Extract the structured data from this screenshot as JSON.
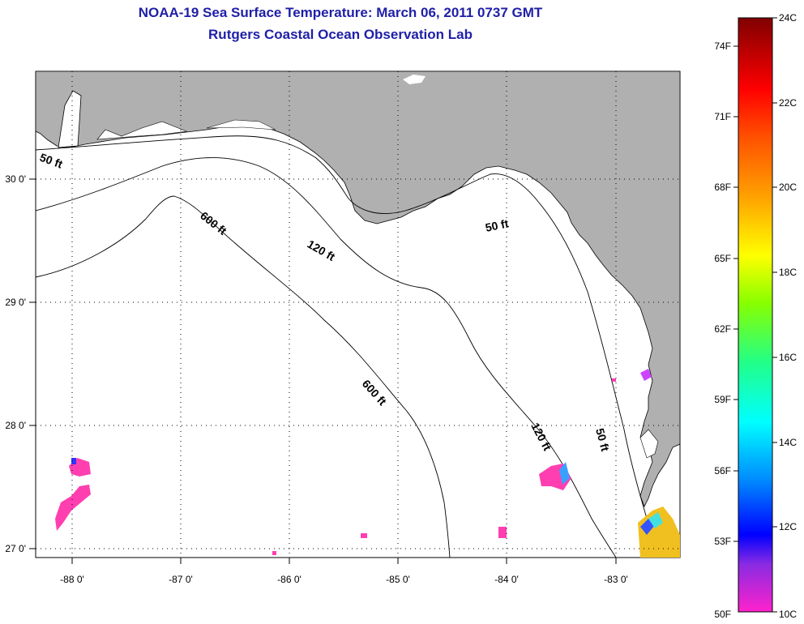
{
  "title": "NOAA-19 Sea Surface Temperature:  March 06, 2011 0737 GMT",
  "subtitle": "Rutgers Coastal Ocean Observation Lab",
  "map": {
    "lon_labels": [
      "-88 0'",
      "-87 0'",
      "-86 0'",
      "-85 0'",
      "-84 0'",
      "-83 0'"
    ],
    "lat_labels": [
      "30 0'",
      "29 0'",
      "28 0'",
      "27 0'"
    ],
    "lon_range": [
      -88.35,
      -82.5
    ],
    "lat_range": [
      26.95,
      30.9
    ],
    "gridlines": "dotted",
    "land_color": "#b0b0b0",
    "water_color": "#ffffff",
    "contours": [
      {
        "label": "50 ft"
      },
      {
        "label": "120 ft"
      },
      {
        "label": "600 ft"
      }
    ]
  },
  "colorbar": {
    "fahrenheit_labels": [
      "74F",
      "71F",
      "68F",
      "65F",
      "62F",
      "59F",
      "56F",
      "53F",
      "50F"
    ],
    "celsius_labels": [
      "24C",
      "22C",
      "20C",
      "18C",
      "16C",
      "14C",
      "12C",
      "10C"
    ],
    "colors": [
      "#ff22cc",
      "#8a2be2",
      "#0000ff",
      "#00aaff",
      "#00ffff",
      "#22ff88",
      "#88ff00",
      "#ffff00",
      "#ffb000",
      "#ff6600",
      "#ff0000",
      "#cc0000",
      "#800000"
    ]
  }
}
